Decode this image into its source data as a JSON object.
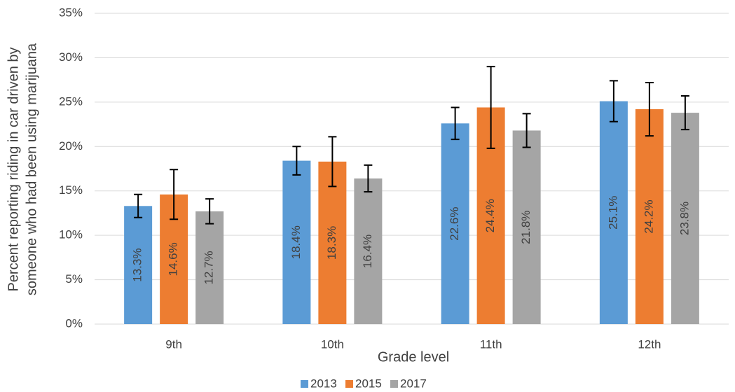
{
  "chart_data": {
    "type": "bar",
    "y_label": [
      "Percent reporting riding in car driven by",
      "someone who had been using marijuana"
    ],
    "x_label": "Grade level",
    "categories": [
      "9th",
      "10th",
      "11th",
      "12th"
    ],
    "series": [
      {
        "name": "2013",
        "color": "#5b9bd5",
        "values": [
          13.3,
          18.4,
          22.6,
          25.1
        ],
        "value_labels": [
          "13.3%",
          "18.4%",
          "22.6%",
          "25.1%"
        ],
        "errors": [
          1.3,
          1.6,
          1.8,
          2.3
        ]
      },
      {
        "name": "2015",
        "color": "#ed7d31",
        "values": [
          14.6,
          18.3,
          24.4,
          24.2
        ],
        "value_labels": [
          "14.6%",
          "18.3%",
          "24.4%",
          "24.2%"
        ],
        "errors": [
          2.8,
          2.8,
          4.6,
          3.0
        ]
      },
      {
        "name": "2017",
        "color": "#a5a5a5",
        "values": [
          12.7,
          16.4,
          21.8,
          23.8
        ],
        "value_labels": [
          "12.7%",
          "16.4%",
          "21.8%",
          "23.8%"
        ],
        "errors": [
          1.4,
          1.5,
          1.9,
          1.9
        ]
      }
    ],
    "ylim": [
      0,
      35
    ],
    "yticks": [
      {
        "value": 0,
        "label": "0%"
      },
      {
        "value": 5,
        "label": "5%"
      },
      {
        "value": 10,
        "label": "10%"
      },
      {
        "value": 15,
        "label": "15%"
      },
      {
        "value": 20,
        "label": "20%"
      },
      {
        "value": 25,
        "label": "25%"
      },
      {
        "value": 30,
        "label": "30%"
      },
      {
        "value": 35,
        "label": "35%"
      }
    ],
    "grid": true,
    "legend": "bottom"
  }
}
